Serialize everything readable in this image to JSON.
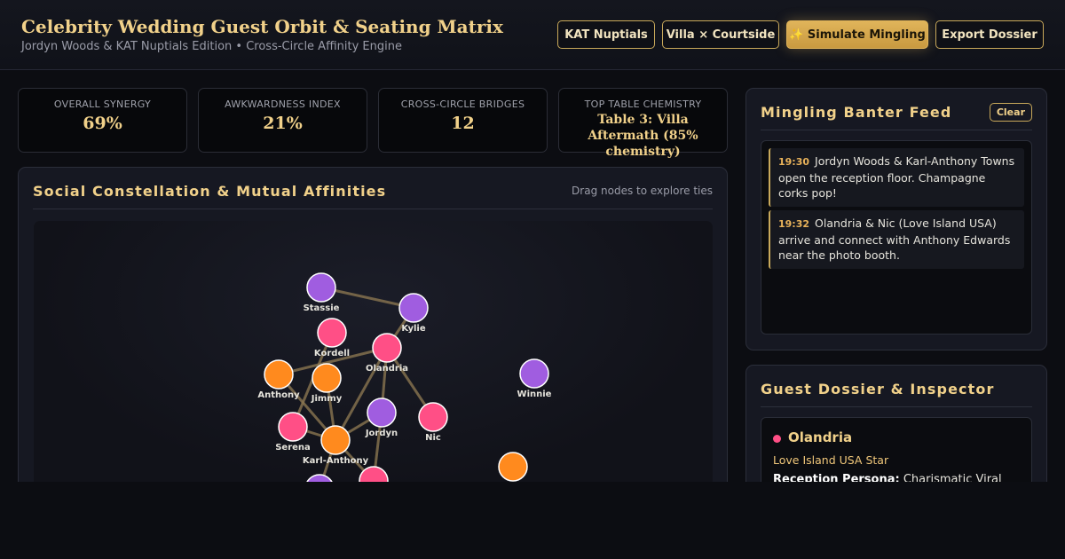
{
  "header": {
    "title": "Celebrity Wedding Guest Orbit & Seating Matrix",
    "subtitle": "Jordyn Woods & KAT Nuptials Edition • Cross-Circle Affinity Engine",
    "buttons": [
      "KAT Nuptials",
      "Villa × Courtside",
      "✨ Simulate Mingling",
      "Export Dossier"
    ]
  },
  "stats": [
    {
      "label": "Overall Synergy",
      "value": "69%"
    },
    {
      "label": "Awkwardness Index",
      "value": "21%"
    },
    {
      "label": "Cross-Circle Bridges",
      "value": "12"
    },
    {
      "label": "Top Table Chemistry",
      "value": "Table 3: Villa Aftermath (85% chemistry)"
    }
  ],
  "constellation": {
    "title": "Social Constellation & Mutual Affinities",
    "hint": "Drag nodes to explore ties",
    "colors": {
      "purple": "#a05de0",
      "pink": "#ff4f86",
      "orange": "#ff8a1e",
      "edge": "#8a7650"
    },
    "nodes": [
      {
        "id": "stassie",
        "label": "Stassie",
        "color": "purple"
      },
      {
        "id": "kylie",
        "label": "Kylie",
        "color": "purple"
      },
      {
        "id": "kordell",
        "label": "Kordell",
        "color": "pink"
      },
      {
        "id": "olandria",
        "label": "Olandria",
        "color": "pink"
      },
      {
        "id": "anthony",
        "label": "Anthony",
        "color": "orange"
      },
      {
        "id": "jimmy",
        "label": "Jimmy",
        "color": "orange"
      },
      {
        "id": "winnie",
        "label": "Winnie",
        "color": "purple"
      },
      {
        "id": "jordyn",
        "label": "Jordyn",
        "color": "purple"
      },
      {
        "id": "nic",
        "label": "Nic",
        "color": "pink"
      },
      {
        "id": "serena",
        "label": "Serena",
        "color": "pink"
      },
      {
        "id": "karl",
        "label": "Karl-Anthony",
        "color": "orange"
      },
      {
        "id": "extra1",
        "label": "",
        "color": "orange"
      },
      {
        "id": "extra2",
        "label": "",
        "color": "purple"
      },
      {
        "id": "extra3",
        "label": "",
        "color": "pink"
      }
    ],
    "edges": [
      [
        "stassie",
        "kylie"
      ],
      [
        "kylie",
        "olandria"
      ],
      [
        "anthony",
        "olandria"
      ],
      [
        "kordell",
        "serena"
      ],
      [
        "anthony",
        "karl"
      ],
      [
        "jimmy",
        "karl"
      ],
      [
        "olandria",
        "jordyn"
      ],
      [
        "olandria",
        "nic"
      ],
      [
        "olandria",
        "karl"
      ],
      [
        "jordyn",
        "karl"
      ],
      [
        "serena",
        "karl"
      ],
      [
        "karl",
        "extra2"
      ],
      [
        "karl",
        "extra3"
      ],
      [
        "jordyn",
        "extra3"
      ]
    ]
  },
  "feed": {
    "title": "Mingling Banter Feed",
    "clear_label": "Clear",
    "items": [
      {
        "time": "19:30",
        "text": "Jordyn Woods & Karl-Anthony Towns open the reception floor. Champagne corks pop!"
      },
      {
        "time": "19:32",
        "text": "Olandria & Nic (Love Island USA) arrive and connect with Anthony Edwards near the photo booth."
      }
    ]
  },
  "dossier": {
    "title": "Guest Dossier & Inspector",
    "name": "Olandria",
    "subtitle": "Love Island USA Star",
    "persona_label": "Reception Persona:",
    "persona_value": "Charismatic Viral"
  }
}
